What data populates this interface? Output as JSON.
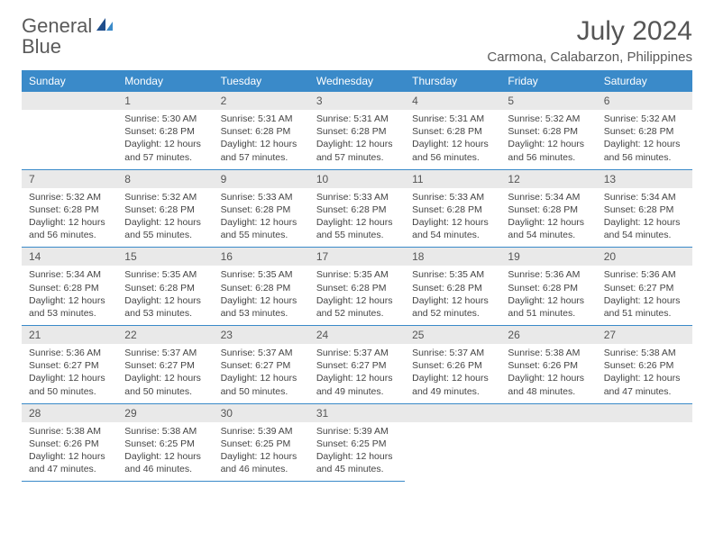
{
  "logo": {
    "word1": "General",
    "word2": "Blue"
  },
  "title": "July 2024",
  "location": "Carmona, Calabarzon, Philippines",
  "colors": {
    "header_bg": "#3a8ac9",
    "header_text": "#ffffff",
    "daynum_bg": "#e9e9e9",
    "border": "#3a8ac9",
    "text": "#444444",
    "title_text": "#555555",
    "logo_gray": "#5a5a5a",
    "logo_blue": "#2f7ac5"
  },
  "weekdays": [
    "Sunday",
    "Monday",
    "Tuesday",
    "Wednesday",
    "Thursday",
    "Friday",
    "Saturday"
  ],
  "weeks": [
    [
      null,
      {
        "n": "1",
        "sr": "5:30 AM",
        "ss": "6:28 PM",
        "dl": "12 hours and 57 minutes."
      },
      {
        "n": "2",
        "sr": "5:31 AM",
        "ss": "6:28 PM",
        "dl": "12 hours and 57 minutes."
      },
      {
        "n": "3",
        "sr": "5:31 AM",
        "ss": "6:28 PM",
        "dl": "12 hours and 57 minutes."
      },
      {
        "n": "4",
        "sr": "5:31 AM",
        "ss": "6:28 PM",
        "dl": "12 hours and 56 minutes."
      },
      {
        "n": "5",
        "sr": "5:32 AM",
        "ss": "6:28 PM",
        "dl": "12 hours and 56 minutes."
      },
      {
        "n": "6",
        "sr": "5:32 AM",
        "ss": "6:28 PM",
        "dl": "12 hours and 56 minutes."
      }
    ],
    [
      {
        "n": "7",
        "sr": "5:32 AM",
        "ss": "6:28 PM",
        "dl": "12 hours and 56 minutes."
      },
      {
        "n": "8",
        "sr": "5:32 AM",
        "ss": "6:28 PM",
        "dl": "12 hours and 55 minutes."
      },
      {
        "n": "9",
        "sr": "5:33 AM",
        "ss": "6:28 PM",
        "dl": "12 hours and 55 minutes."
      },
      {
        "n": "10",
        "sr": "5:33 AM",
        "ss": "6:28 PM",
        "dl": "12 hours and 55 minutes."
      },
      {
        "n": "11",
        "sr": "5:33 AM",
        "ss": "6:28 PM",
        "dl": "12 hours and 54 minutes."
      },
      {
        "n": "12",
        "sr": "5:34 AM",
        "ss": "6:28 PM",
        "dl": "12 hours and 54 minutes."
      },
      {
        "n": "13",
        "sr": "5:34 AM",
        "ss": "6:28 PM",
        "dl": "12 hours and 54 minutes."
      }
    ],
    [
      {
        "n": "14",
        "sr": "5:34 AM",
        "ss": "6:28 PM",
        "dl": "12 hours and 53 minutes."
      },
      {
        "n": "15",
        "sr": "5:35 AM",
        "ss": "6:28 PM",
        "dl": "12 hours and 53 minutes."
      },
      {
        "n": "16",
        "sr": "5:35 AM",
        "ss": "6:28 PM",
        "dl": "12 hours and 53 minutes."
      },
      {
        "n": "17",
        "sr": "5:35 AM",
        "ss": "6:28 PM",
        "dl": "12 hours and 52 minutes."
      },
      {
        "n": "18",
        "sr": "5:35 AM",
        "ss": "6:28 PM",
        "dl": "12 hours and 52 minutes."
      },
      {
        "n": "19",
        "sr": "5:36 AM",
        "ss": "6:28 PM",
        "dl": "12 hours and 51 minutes."
      },
      {
        "n": "20",
        "sr": "5:36 AM",
        "ss": "6:27 PM",
        "dl": "12 hours and 51 minutes."
      }
    ],
    [
      {
        "n": "21",
        "sr": "5:36 AM",
        "ss": "6:27 PM",
        "dl": "12 hours and 50 minutes."
      },
      {
        "n": "22",
        "sr": "5:37 AM",
        "ss": "6:27 PM",
        "dl": "12 hours and 50 minutes."
      },
      {
        "n": "23",
        "sr": "5:37 AM",
        "ss": "6:27 PM",
        "dl": "12 hours and 50 minutes."
      },
      {
        "n": "24",
        "sr": "5:37 AM",
        "ss": "6:27 PM",
        "dl": "12 hours and 49 minutes."
      },
      {
        "n": "25",
        "sr": "5:37 AM",
        "ss": "6:26 PM",
        "dl": "12 hours and 49 minutes."
      },
      {
        "n": "26",
        "sr": "5:38 AM",
        "ss": "6:26 PM",
        "dl": "12 hours and 48 minutes."
      },
      {
        "n": "27",
        "sr": "5:38 AM",
        "ss": "6:26 PM",
        "dl": "12 hours and 47 minutes."
      }
    ],
    [
      {
        "n": "28",
        "sr": "5:38 AM",
        "ss": "6:26 PM",
        "dl": "12 hours and 47 minutes."
      },
      {
        "n": "29",
        "sr": "5:38 AM",
        "ss": "6:25 PM",
        "dl": "12 hours and 46 minutes."
      },
      {
        "n": "30",
        "sr": "5:39 AM",
        "ss": "6:25 PM",
        "dl": "12 hours and 46 minutes."
      },
      {
        "n": "31",
        "sr": "5:39 AM",
        "ss": "6:25 PM",
        "dl": "12 hours and 45 minutes."
      },
      null,
      null,
      null
    ]
  ],
  "labels": {
    "sunrise": "Sunrise:",
    "sunset": "Sunset:",
    "daylight": "Daylight:"
  }
}
